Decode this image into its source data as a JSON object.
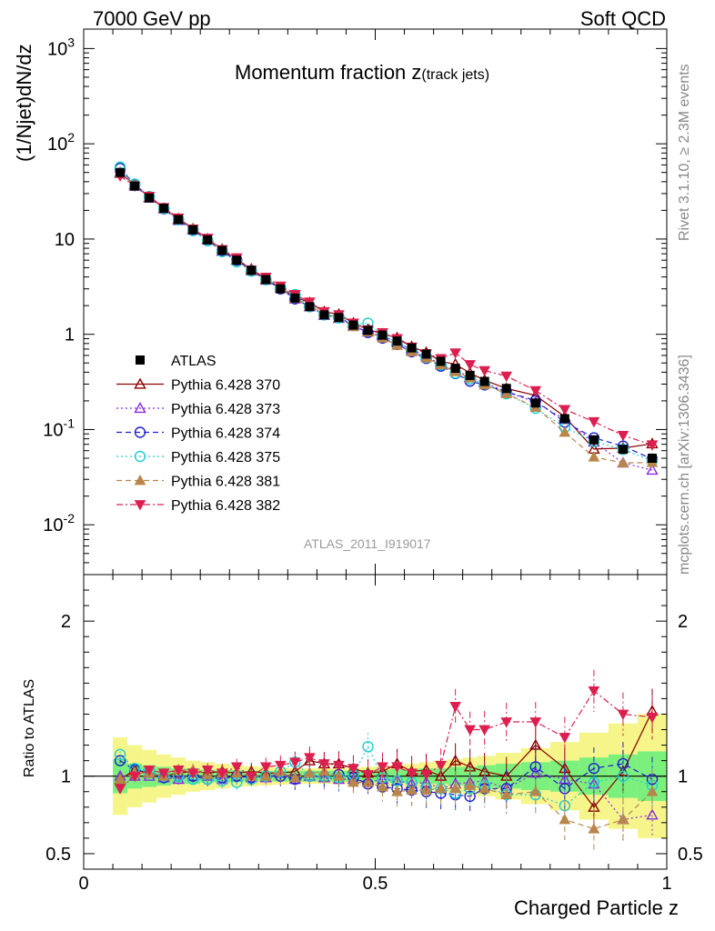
{
  "header": {
    "left": "7000 GeV pp",
    "right": "Soft QCD"
  },
  "side_notes": {
    "rivet": "Rivet 3.1.10, ≥ 2.3M events",
    "mcplots": "mcplots.cern.ch [arXiv:1306.3436]"
  },
  "plot_title": {
    "main": "Momentum fraction z",
    "sub": "(track jets)"
  },
  "analysis_id": "ATLAS_2011_I919017",
  "y_label_top": "(1/Njet)dN/dz",
  "y_label_bottom": "Ratio to ATLAS",
  "x_label": "Charged Particle z",
  "chart_data": {
    "type": "scatter",
    "x_label": "Charged Particle z",
    "x_range": [
      0,
      1
    ],
    "x_ticks": [
      "0",
      "0.5",
      "1"
    ],
    "main_panel": {
      "y_label": "(1/Njet)dN/dz",
      "y_scale": "log",
      "y_range": [
        0.003,
        1600
      ],
      "y_ticks": [
        "10^-2",
        "10^-1",
        "1",
        "10",
        "10^2",
        "10^3"
      ],
      "legend_position": "bottom-left"
    },
    "ratio_panel": {
      "y_label": "Ratio to ATLAS",
      "y_range": [
        0.4,
        2.3
      ],
      "y_ticks": [
        "0.5",
        "1",
        "2"
      ]
    },
    "x": [
      0.0625,
      0.0875,
      0.1125,
      0.1375,
      0.1625,
      0.1875,
      0.2125,
      0.2375,
      0.2625,
      0.2875,
      0.3125,
      0.3375,
      0.3625,
      0.3875,
      0.4125,
      0.4375,
      0.4625,
      0.4875,
      0.5125,
      0.5375,
      0.5625,
      0.5875,
      0.6125,
      0.6375,
      0.6625,
      0.6875,
      0.725,
      0.775,
      0.825,
      0.875,
      0.925,
      0.975
    ],
    "data": {
      "name": "ATLAS",
      "color": "#000000",
      "values": [
        50,
        36,
        27,
        21,
        16,
        12.5,
        9.8,
        7.6,
        6.0,
        4.7,
        3.75,
        3.0,
        2.4,
        1.95,
        1.6,
        1.5,
        1.25,
        1.1,
        0.98,
        0.85,
        0.72,
        0.62,
        0.52,
        0.44,
        0.37,
        0.32,
        0.27,
        0.19,
        0.13,
        0.078,
        0.062,
        0.05
      ]
    },
    "series": [
      {
        "name": "Pythia 6.428 370",
        "color": "#8b0000",
        "marker": "open-triangle-up",
        "line": "solid",
        "ratio": [
          0.98,
          1.04,
          1.02,
          1.0,
          1.02,
          1.03,
          1.02,
          1.03,
          1.02,
          1.03,
          1.02,
          1.02,
          1.03,
          1.1,
          1.08,
          1.08,
          1.05,
          1.02,
          1.03,
          1.08,
          1.03,
          1.04,
          1.0,
          1.1,
          1.06,
          1.03,
          1.0,
          1.2,
          1.05,
          0.8,
          1.03,
          1.42
        ]
      },
      {
        "name": "Pythia 6.428 373",
        "color": "#8a2be2",
        "marker": "open-triangle-up",
        "line": "dotted",
        "ratio": [
          1.0,
          1.0,
          1.0,
          0.99,
          0.98,
          1.0,
          1.0,
          0.98,
          1.0,
          0.99,
          0.99,
          1.02,
          0.98,
          1.0,
          0.99,
          0.98,
          0.98,
          0.96,
          0.98,
          0.97,
          0.95,
          0.96,
          0.92,
          0.95,
          0.96,
          0.97,
          0.92,
          1.02,
          0.98,
          0.95,
          0.72,
          0.75
        ]
      },
      {
        "name": "Pythia 6.428 374",
        "color": "#1f1fcc",
        "marker": "open-circle",
        "line": "dashed",
        "ratio": [
          1.1,
          1.04,
          1.03,
          0.99,
          1.0,
          1.0,
          0.98,
          0.99,
          1.0,
          0.99,
          1.0,
          1.0,
          0.98,
          1.0,
          1.0,
          1.01,
          0.99,
          0.95,
          0.93,
          0.92,
          0.91,
          0.9,
          0.89,
          0.88,
          0.87,
          0.92,
          0.92,
          1.06,
          0.92,
          1.05,
          1.08,
          0.98
        ]
      },
      {
        "name": "Pythia 6.428 375",
        "color": "#1fcfcf",
        "marker": "open-circle",
        "line": "dotted",
        "ratio": [
          1.14,
          1.05,
          1.03,
          1.0,
          1.0,
          0.98,
          0.98,
          0.97,
          0.96,
          0.98,
          1.0,
          1.03,
          1.09,
          1.0,
          1.0,
          0.99,
          1.01,
          1.19,
          0.99,
          0.97,
          0.96,
          0.92,
          0.92,
          0.89,
          0.92,
          0.94,
          0.88,
          0.88,
          0.81,
          0.96,
          1.0,
          0.94
        ]
      },
      {
        "name": "Pythia 6.428 381",
        "color": "#b8864b",
        "marker": "filled-triangle-up",
        "line": "dashed",
        "ratio": [
          0.98,
          1.02,
          1.02,
          1.0,
          1.04,
          1.04,
          1.01,
          1.02,
          1.02,
          1.0,
          1.0,
          1.03,
          0.99,
          1.02,
          1.03,
          1.0,
          0.96,
          0.96,
          0.93,
          0.9,
          0.91,
          0.91,
          0.92,
          0.92,
          0.94,
          0.92,
          0.88,
          0.9,
          0.72,
          0.66,
          0.72,
          0.9
        ]
      },
      {
        "name": "Pythia 6.428 382",
        "color": "#dc1f4f",
        "marker": "filled-triangle-down",
        "line": "dashdot",
        "ratio": [
          0.92,
          1.0,
          1.04,
          1.02,
          1.04,
          1.02,
          1.04,
          1.02,
          1.06,
          1.0,
          1.06,
          1.07,
          1.09,
          1.12,
          1.08,
          1.07,
          1.05,
          1.01,
          1.06,
          1.06,
          1.02,
          1.01,
          1.07,
          1.45,
          1.3,
          1.3,
          1.35,
          1.35,
          1.25,
          1.55,
          1.4,
          1.38
        ]
      }
    ],
    "bands": {
      "inner_color": "#7cf07c",
      "outer_color": "#f5f58a",
      "inner_halfwidth": [
        0.11,
        0.08,
        0.07,
        0.06,
        0.05,
        0.05,
        0.04,
        0.04,
        0.04,
        0.035,
        0.035,
        0.035,
        0.035,
        0.035,
        0.035,
        0.035,
        0.035,
        0.04,
        0.04,
        0.045,
        0.045,
        0.05,
        0.05,
        0.06,
        0.06,
        0.07,
        0.08,
        0.09,
        0.1,
        0.12,
        0.14,
        0.16
      ],
      "outer_halfwidth": [
        0.25,
        0.2,
        0.17,
        0.14,
        0.12,
        0.1,
        0.09,
        0.08,
        0.07,
        0.065,
        0.06,
        0.055,
        0.05,
        0.05,
        0.05,
        0.05,
        0.055,
        0.06,
        0.065,
        0.07,
        0.08,
        0.09,
        0.1,
        0.11,
        0.12,
        0.13,
        0.15,
        0.18,
        0.22,
        0.28,
        0.34,
        0.4
      ]
    }
  }
}
